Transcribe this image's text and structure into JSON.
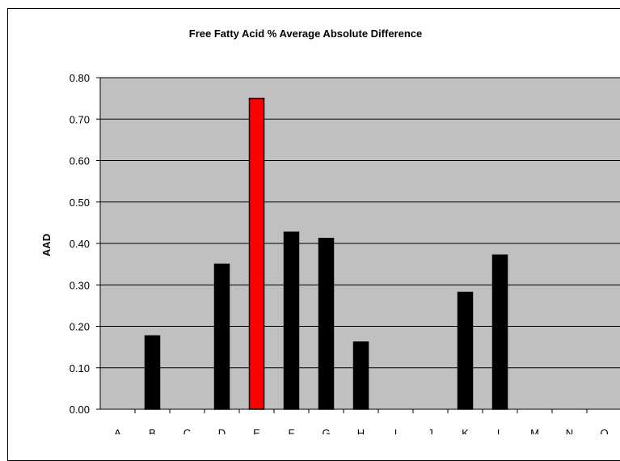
{
  "chart_data": {
    "type": "bar",
    "title": "Free Fatty Acid % Average Absolute Difference",
    "xlabel": "",
    "ylabel": "AAD",
    "categories": [
      "A",
      "B",
      "C",
      "D",
      "E",
      "F",
      "G",
      "H",
      "I",
      "J",
      "K",
      "L",
      "M",
      "N",
      "O"
    ],
    "values": [
      0,
      0.177,
      0,
      0.35,
      0.75,
      0.427,
      0.412,
      0.162,
      0,
      0,
      0.282,
      0.372,
      0,
      0,
      0
    ],
    "ylim": [
      0,
      0.8
    ],
    "yticks": [
      "0.00",
      "0.10",
      "0.20",
      "0.30",
      "0.40",
      "0.50",
      "0.60",
      "0.70",
      "0.80"
    ],
    "grid": true,
    "legend": "none",
    "highlight_category": "E",
    "colors": {
      "bar": "#000000",
      "highlight": "#ff0000",
      "plot_background": "#c0c0c0",
      "gridline": "#000000"
    }
  }
}
